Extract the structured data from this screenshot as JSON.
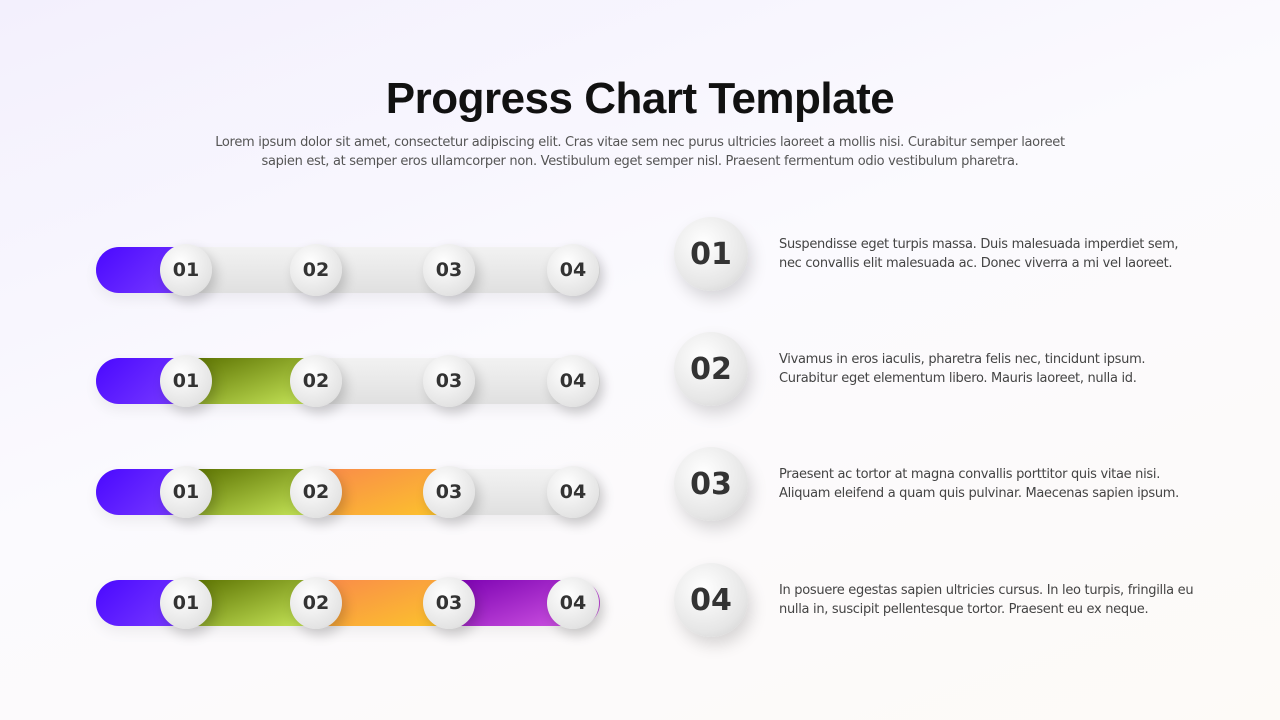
{
  "title": "Progress Chart Template",
  "subtitle": "Lorem ipsum dolor sit amet, consectetur adipiscing elit. Cras vitae sem nec purus ultricies laoreet a mollis nisi. Curabitur semper laoreet sapien est, at semper eros ullamcorper non. Vestibulum eget semper nisl. Praesent fermentum odio vestibulum pharetra.",
  "colors": {
    "step1": "#5a14ff",
    "step2": "#8fa820",
    "step3": "#fba83a",
    "step4": "#a528d0"
  },
  "bars": [
    {
      "filled_segments": 1,
      "of": 4,
      "labels": [
        "01",
        "02",
        "03",
        "04"
      ]
    },
    {
      "filled_segments": 2,
      "of": 4,
      "labels": [
        "01",
        "02",
        "03",
        "04"
      ]
    },
    {
      "filled_segments": 3,
      "of": 4,
      "labels": [
        "01",
        "02",
        "03",
        "04"
      ]
    },
    {
      "filled_segments": 4,
      "of": 4,
      "labels": [
        "01",
        "02",
        "03",
        "04"
      ]
    }
  ],
  "steps": [
    {
      "number": "01",
      "text": "Suspendisse eget turpis massa. Duis malesuada imperdiet sem, nec convallis elit malesuada ac. Donec viverra a mi vel laoreet."
    },
    {
      "number": "02",
      "text": "Vivamus in eros iaculis, pharetra felis nec, tincidunt ipsum. Curabitur eget elementum libero. Mauris laoreet, nulla id."
    },
    {
      "number": "03",
      "text": "Praesent ac tortor at magna convallis porttitor quis vitae nisi. Aliquam eleifend a quam quis pulvinar. Maecenas sapien ipsum."
    },
    {
      "number": "04",
      "text": "In posuere egestas sapien ultricies cursus. In leo turpis, fringilla eu nulla in, suscipit pellentesque tortor. Praesent eu ex neque."
    }
  ]
}
